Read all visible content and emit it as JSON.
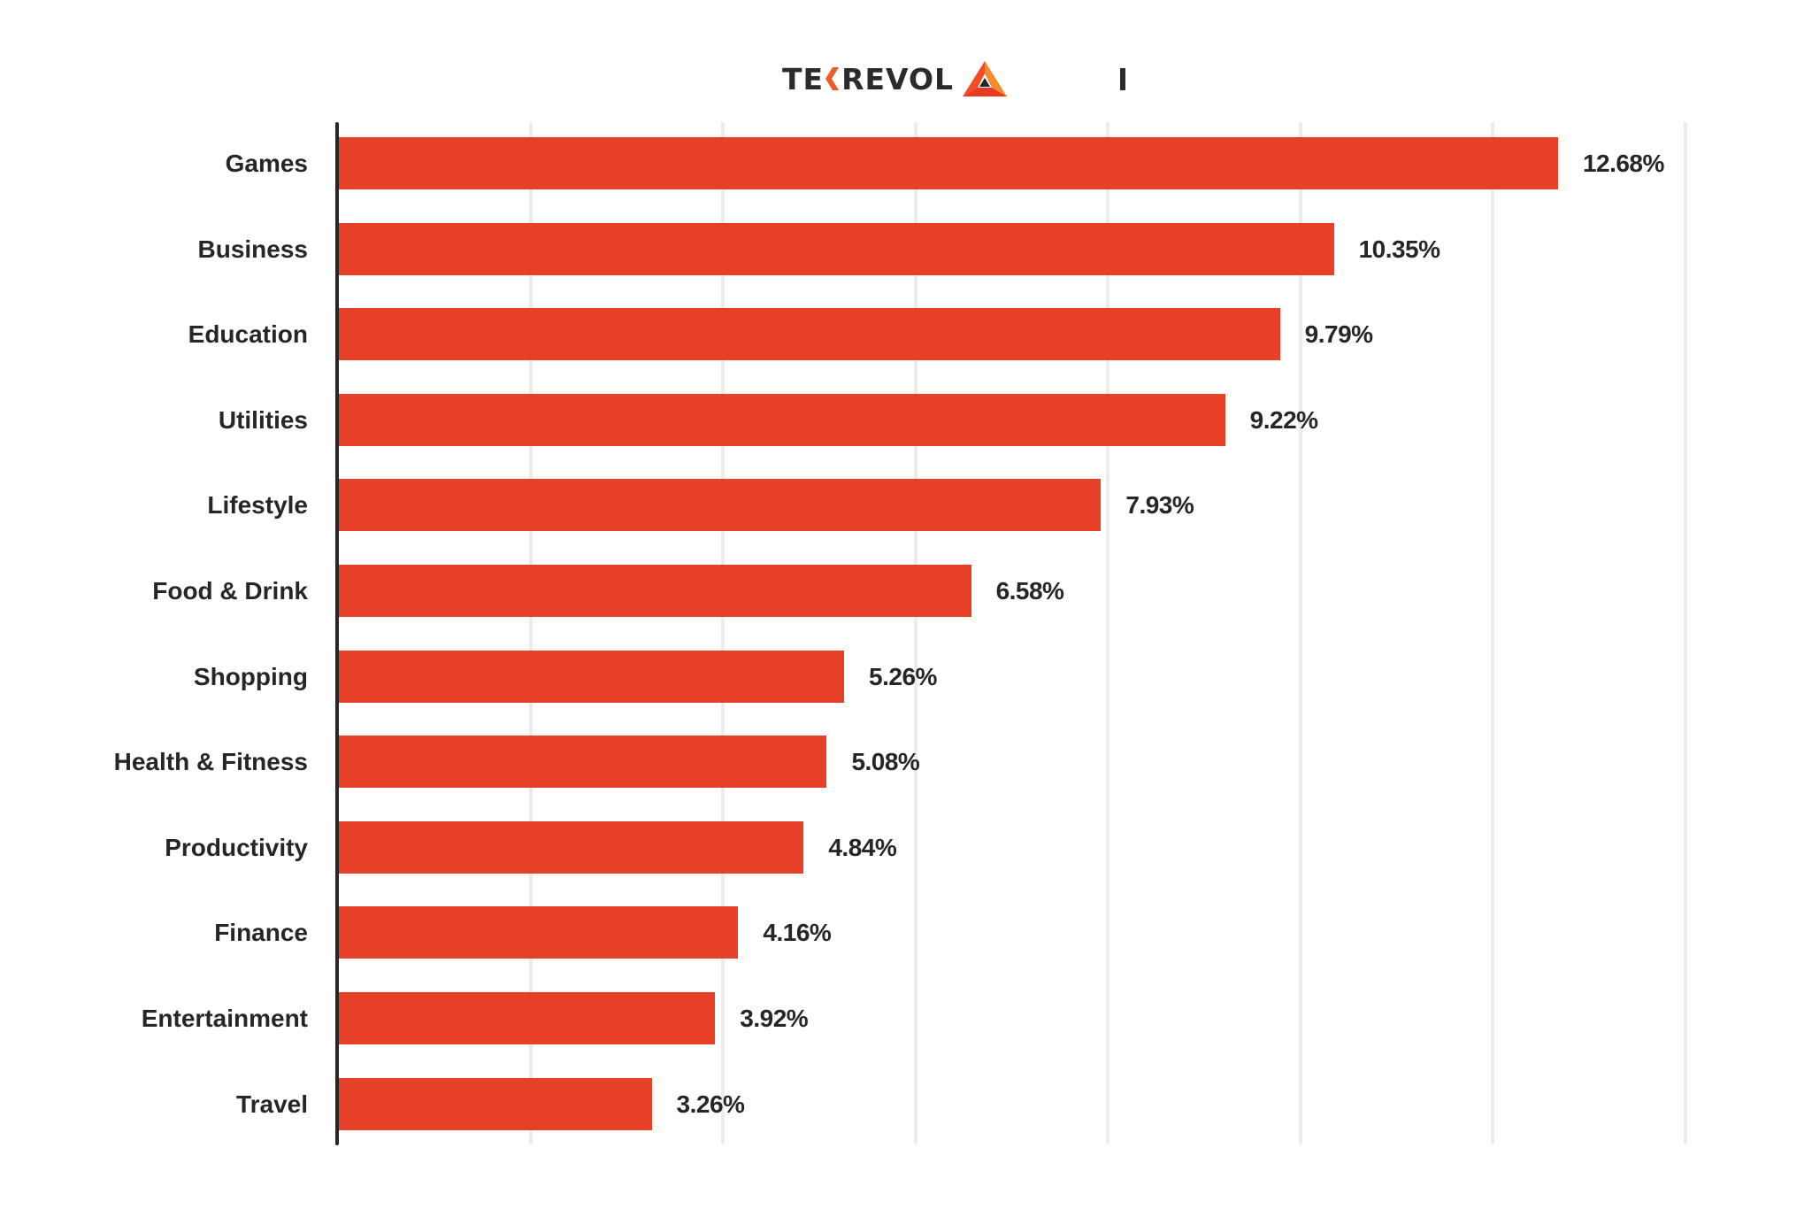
{
  "header": {
    "logo_text_left": "TE",
    "logo_text_right": "REVOL",
    "logo_accent_color": "#f05a28",
    "logo_name": "TEKREVOL"
  },
  "colors": {
    "bar": "#e84027",
    "axis": "#262626",
    "grid": "#ececec",
    "text": "#262626"
  },
  "chart_data": {
    "type": "bar",
    "orientation": "horizontal",
    "title": "",
    "xlabel": "",
    "ylabel": "",
    "categories": [
      "Games",
      "Business",
      "Education",
      "Utilities",
      "Lifestyle",
      "Food & Drink",
      "Shopping",
      "Health & Fitness",
      "Productivity",
      "Finance",
      "Entertainment",
      "Travel"
    ],
    "values": [
      12.68,
      10.35,
      9.79,
      9.22,
      7.93,
      6.58,
      5.26,
      5.08,
      4.84,
      4.16,
      3.92,
      3.26
    ],
    "value_labels": [
      "12.68%",
      "10.35%",
      "9.79%",
      "9.22%",
      "7.93%",
      "6.58%",
      "5.26%",
      "5.08%",
      "4.84%",
      "4.16%",
      "3.92%",
      "3.26%"
    ],
    "unit": "%",
    "xlim": [
      0,
      14
    ],
    "gridlines": [
      2,
      4,
      6,
      8,
      10,
      12,
      14
    ],
    "grid": true,
    "x_tick_labels_visible": false,
    "legend": null
  }
}
